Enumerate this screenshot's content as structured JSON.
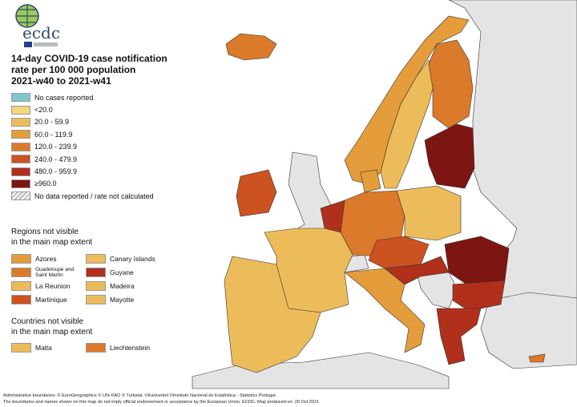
{
  "logo": {
    "text": "ecdc",
    "subtext": "EUROPEAN CENTRE FOR DISEASE PREVENTION AND CONTROL"
  },
  "title": {
    "line1": "14-day COVID-19 case notification",
    "line2": "rate per 100 000 population",
    "line3": "2021-w40 to 2021-w41"
  },
  "legend": [
    {
      "label": "No cases reported",
      "color": "#7fc6cf"
    },
    {
      "label": "<20.0",
      "color": "#f3d77a"
    },
    {
      "label": "20.0 - 59.9",
      "color": "#edbc5a"
    },
    {
      "label": "60.0 - 119.9",
      "color": "#e59c3a"
    },
    {
      "label": "120.0 - 239.9",
      "color": "#db7a2a"
    },
    {
      "label": "240.0 - 479.9",
      "color": "#cc5220"
    },
    {
      "label": "480.0 - 959.9",
      "color": "#b0301c"
    },
    {
      "label": "≥960.0",
      "color": "#7d1512"
    },
    {
      "label": "No data reported / rate not calculated",
      "color": "hatched"
    }
  ],
  "regions": {
    "heading1": "Regions not visible",
    "heading2": "in the main map extent",
    "items": [
      {
        "label": "Azores",
        "color": "#e59c3a"
      },
      {
        "label": "Canary Islands",
        "color": "#edbc5a"
      },
      {
        "label": "Guadeloupe and Saint Martin",
        "color": "#db7a2a"
      },
      {
        "label": "Guyane",
        "color": "#b0301c"
      },
      {
        "label": "La Reunion",
        "color": "#edbc5a"
      },
      {
        "label": "Madeira",
        "color": "#edbc5a"
      },
      {
        "label": "Martinique",
        "color": "#cc5220"
      },
      {
        "label": "Mayotte",
        "color": "#edbc5a"
      }
    ]
  },
  "countries": {
    "heading1": "Countries not visible",
    "heading2": "in the main map extent",
    "items": [
      {
        "label": "Malta",
        "color": "#edbc5a"
      },
      {
        "label": "Liechtenstein",
        "color": "#db7a2a"
      }
    ]
  },
  "footer": {
    "line1": "Administrative boundaries: © EuroGeographics © UN–FAO © Turkstat. ©Kartverket ©Instituto Nacional de Estatística - Statistics Portugal.",
    "line2": "The boundaries and names shown on this map do not imply official endorsement or acceptance by the European Union. ECDC. Map produced on: 20 Oct 2021"
  }
}
